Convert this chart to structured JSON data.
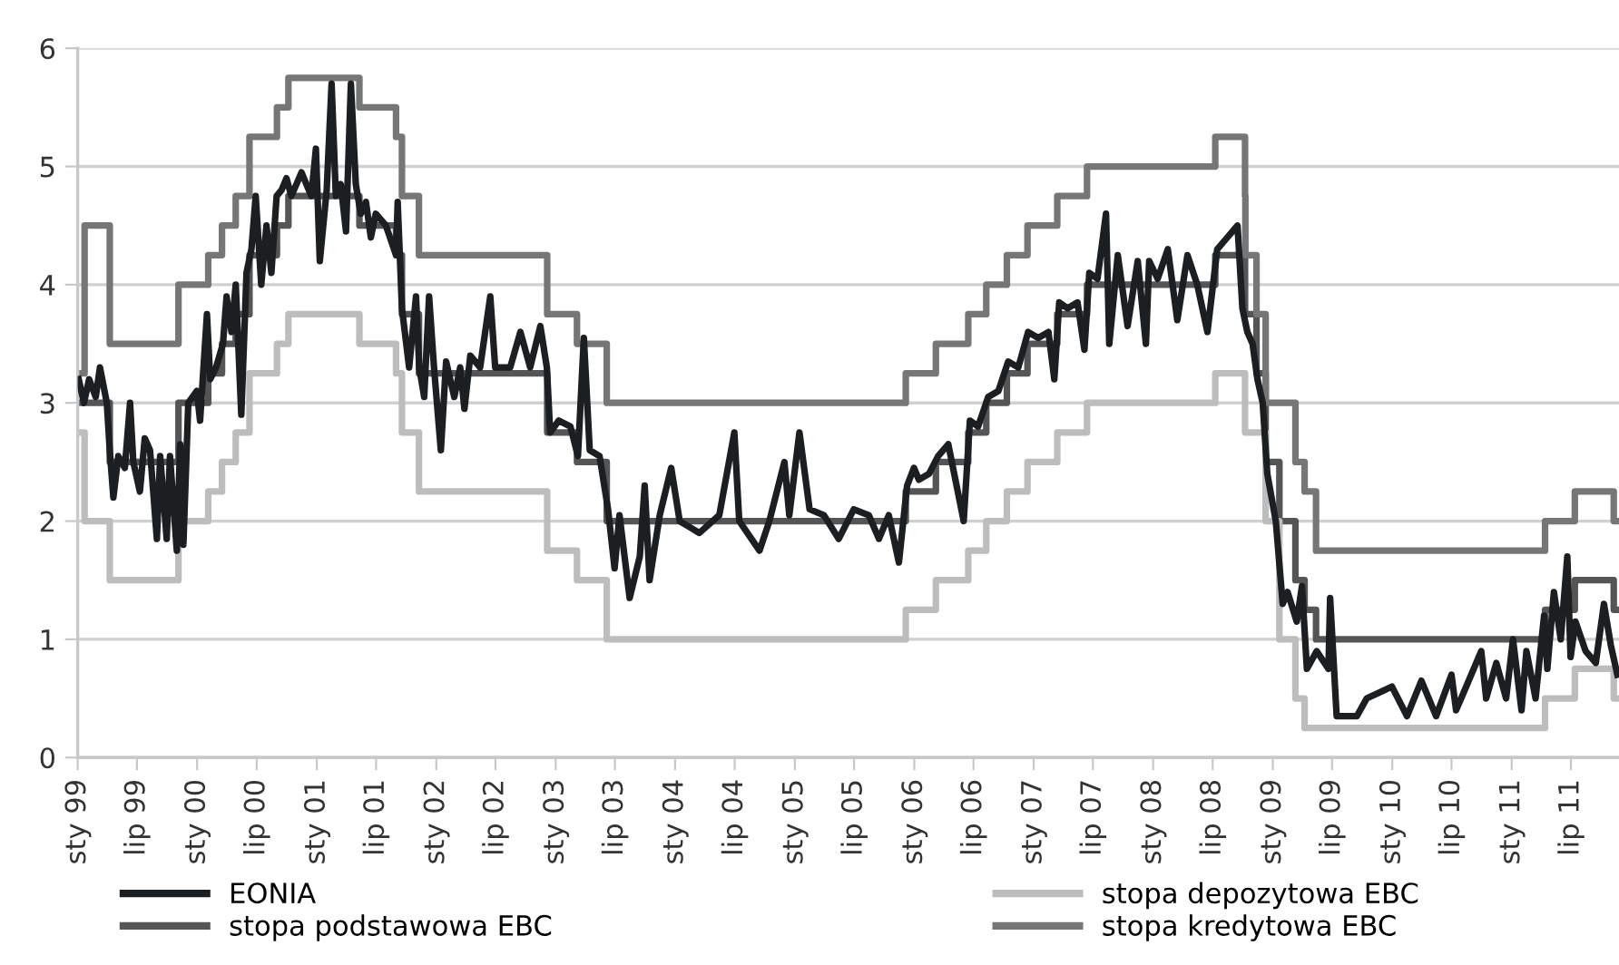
{
  "chart_data": {
    "type": "line",
    "ylim": [
      0,
      6
    ],
    "yticks": [
      0,
      1,
      2,
      3,
      4,
      5,
      6
    ],
    "grid": "y",
    "legend": "bottom",
    "marker": "none",
    "line_style": "solid",
    "xlim": [
      "1999-01-01",
      "2011-11-25"
    ],
    "xticks": [
      {
        "value": "1999-01-01",
        "label": "sty 99"
      },
      {
        "value": "1999-07-01",
        "label": "lip 99"
      },
      {
        "value": "2000-01-01",
        "label": "sty 00"
      },
      {
        "value": "2000-07-01",
        "label": "lip 00"
      },
      {
        "value": "2001-01-01",
        "label": "sty 01"
      },
      {
        "value": "2001-07-01",
        "label": "lip 01"
      },
      {
        "value": "2002-01-01",
        "label": "sty 02"
      },
      {
        "value": "2002-07-01",
        "label": "lip 02"
      },
      {
        "value": "2003-01-01",
        "label": "sty 03"
      },
      {
        "value": "2003-07-01",
        "label": "lip 03"
      },
      {
        "value": "2004-01-01",
        "label": "sty 04"
      },
      {
        "value": "2004-07-01",
        "label": "lip 04"
      },
      {
        "value": "2005-01-01",
        "label": "sty 05"
      },
      {
        "value": "2005-07-01",
        "label": "lip 05"
      },
      {
        "value": "2006-01-01",
        "label": "sty 06"
      },
      {
        "value": "2006-07-01",
        "label": "lip 06"
      },
      {
        "value": "2007-01-01",
        "label": "sty 07"
      },
      {
        "value": "2007-07-01",
        "label": "lip 07"
      },
      {
        "value": "2008-01-01",
        "label": "sty 08"
      },
      {
        "value": "2008-07-01",
        "label": "lip 08"
      },
      {
        "value": "2009-01-01",
        "label": "sty 09"
      },
      {
        "value": "2009-07-01",
        "label": "lip 09"
      },
      {
        "value": "2010-01-01",
        "label": "sty 10"
      },
      {
        "value": "2010-07-01",
        "label": "lip 10"
      },
      {
        "value": "2011-01-01",
        "label": "sty 11"
      },
      {
        "value": "2011-07-01",
        "label": "lip 11"
      }
    ],
    "series": [
      {
        "name": "EONIA",
        "color": "#1c1f21",
        "x": [
          "1999-01-04",
          "1999-01-20",
          "1999-02-05",
          "1999-02-25",
          "1999-03-10",
          "1999-03-31",
          "1999-04-09",
          "1999-04-20",
          "1999-05-05",
          "1999-05-25",
          "1999-06-10",
          "1999-06-20",
          "1999-07-10",
          "1999-07-25",
          "1999-08-10",
          "1999-08-31",
          "1999-09-10",
          "1999-09-30",
          "1999-10-10",
          "1999-10-31",
          "1999-11-10",
          "1999-11-20",
          "1999-12-05",
          "1999-12-31",
          "2000-01-10",
          "2000-01-31",
          "2000-02-10",
          "2000-02-28",
          "2000-03-20",
          "2000-03-31",
          "2000-04-15",
          "2000-04-28",
          "2000-05-15",
          "2000-05-31",
          "2000-06-15",
          "2000-06-28",
          "2000-07-15",
          "2000-07-31",
          "2000-08-15",
          "2000-08-31",
          "2000-09-15",
          "2000-09-30",
          "2000-10-15",
          "2000-11-15",
          "2000-12-15",
          "2000-12-29",
          "2001-01-10",
          "2001-01-31",
          "2001-02-15",
          "2001-02-28",
          "2001-03-15",
          "2001-03-31",
          "2001-04-15",
          "2001-04-30",
          "2001-05-15",
          "2001-05-31",
          "2001-06-15",
          "2001-06-30",
          "2001-07-31",
          "2001-08-31",
          "2001-09-05",
          "2001-09-18",
          "2001-10-10",
          "2001-10-31",
          "2001-11-10",
          "2001-11-25",
          "2001-12-10",
          "2001-12-25",
          "2002-01-15",
          "2002-01-31",
          "2002-02-25",
          "2002-03-15",
          "2002-03-28",
          "2002-04-15",
          "2002-05-15",
          "2002-06-15",
          "2002-06-30",
          "2002-08-15",
          "2002-09-15",
          "2002-10-15",
          "2002-11-15",
          "2002-12-05",
          "2002-12-15",
          "2003-01-10",
          "2003-02-15",
          "2003-03-10",
          "2003-03-28",
          "2003-04-15",
          "2003-05-15",
          "2003-06-10",
          "2003-06-30",
          "2003-07-15",
          "2003-08-15",
          "2003-09-15",
          "2003-09-30",
          "2003-10-15",
          "2003-11-15",
          "2003-12-20",
          "2004-01-15",
          "2004-03-15",
          "2004-05-15",
          "2004-06-30",
          "2004-07-15",
          "2004-09-15",
          "2004-10-15",
          "2004-11-30",
          "2004-12-15",
          "2005-01-15",
          "2005-02-15",
          "2005-03-31",
          "2005-05-15",
          "2005-06-30",
          "2005-08-15",
          "2005-09-15",
          "2005-10-15",
          "2005-11-15",
          "2005-12-10",
          "2005-12-31",
          "2006-01-15",
          "2006-02-15",
          "2006-03-15",
          "2006-04-15",
          "2006-06-01",
          "2006-06-20",
          "2006-07-15",
          "2006-08-15",
          "2006-09-15",
          "2006-10-15",
          "2006-11-15",
          "2006-12-15",
          "2007-01-15",
          "2007-02-15",
          "2007-03-05",
          "2007-03-20",
          "2007-04-15",
          "2007-05-15",
          "2007-06-05",
          "2007-06-20",
          "2007-07-15",
          "2007-08-10",
          "2007-08-20",
          "2007-09-15",
          "2007-10-15",
          "2007-11-15",
          "2007-12-10",
          "2007-12-20",
          "2008-01-15",
          "2008-02-15",
          "2008-03-15",
          "2008-04-15",
          "2008-05-15",
          "2008-06-15",
          "2008-07-15",
          "2008-08-15",
          "2008-09-15",
          "2008-09-30",
          "2008-10-15",
          "2008-10-31",
          "2008-11-15",
          "2008-12-01",
          "2008-12-15",
          "2009-01-10",
          "2009-01-31",
          "2009-02-15",
          "2009-03-15",
          "2009-03-31",
          "2009-04-15",
          "2009-05-15",
          "2009-06-20",
          "2009-06-25",
          "2009-07-15",
          "2009-09-15",
          "2009-10-15",
          "2009-12-31",
          "2010-02-15",
          "2010-03-31",
          "2010-05-15",
          "2010-07-01",
          "2010-07-15",
          "2010-08-15",
          "2010-09-30",
          "2010-10-15",
          "2010-11-15",
          "2010-12-15",
          "2011-01-05",
          "2011-01-31",
          "2011-02-15",
          "2011-03-15",
          "2011-04-10",
          "2011-04-20",
          "2011-05-10",
          "2011-05-31",
          "2011-06-20",
          "2011-06-30",
          "2011-07-15",
          "2011-08-15",
          "2011-09-15",
          "2011-10-10",
          "2011-10-31",
          "2011-11-20"
        ],
        "values": [
          3.2,
          3.0,
          3.2,
          3.05,
          3.3,
          3.0,
          2.6,
          2.2,
          2.55,
          2.45,
          3.0,
          2.5,
          2.25,
          2.7,
          2.6,
          1.85,
          2.55,
          1.85,
          2.55,
          1.75,
          2.65,
          1.8,
          3.0,
          3.1,
          2.85,
          3.75,
          3.2,
          3.3,
          3.5,
          3.9,
          3.6,
          4.0,
          2.9,
          4.1,
          4.3,
          4.75,
          4.0,
          4.5,
          4.1,
          4.75,
          4.8,
          4.9,
          4.75,
          4.95,
          4.75,
          5.15,
          4.2,
          4.8,
          5.7,
          4.75,
          4.85,
          4.45,
          5.7,
          4.85,
          4.6,
          4.7,
          4.4,
          4.6,
          4.5,
          4.25,
          4.7,
          3.8,
          3.3,
          3.9,
          3.3,
          3.05,
          3.9,
          3.3,
          2.6,
          3.35,
          3.05,
          3.3,
          2.95,
          3.4,
          3.3,
          3.9,
          3.3,
          3.3,
          3.6,
          3.3,
          3.65,
          3.3,
          2.75,
          2.85,
          2.8,
          2.55,
          3.55,
          2.6,
          2.55,
          2.1,
          1.6,
          2.05,
          1.35,
          1.7,
          2.3,
          1.5,
          2.05,
          2.45,
          2.0,
          1.9,
          2.05,
          2.75,
          2.0,
          1.75,
          2.0,
          2.5,
          2.05,
          2.75,
          2.1,
          2.05,
          1.85,
          2.1,
          2.05,
          1.85,
          2.05,
          1.65,
          2.3,
          2.45,
          2.35,
          2.4,
          2.55,
          2.65,
          2.0,
          2.85,
          2.8,
          3.05,
          3.1,
          3.35,
          3.3,
          3.6,
          3.55,
          3.6,
          3.2,
          3.85,
          3.8,
          3.85,
          3.45,
          4.1,
          4.05,
          4.6,
          3.5,
          4.25,
          3.65,
          4.2,
          3.5,
          4.2,
          4.05,
          4.3,
          3.7,
          4.25,
          4.0,
          3.6,
          4.3,
          4.4,
          4.5,
          3.8,
          3.6,
          3.5,
          3.2,
          3.0,
          2.4,
          2.0,
          1.3,
          1.4,
          1.15,
          1.45,
          0.75,
          0.9,
          0.75,
          1.35,
          0.35,
          0.35,
          0.5,
          0.6,
          0.35,
          0.65,
          0.35,
          0.7,
          0.4,
          0.6,
          0.9,
          0.5,
          0.8,
          0.5,
          1.0,
          0.4,
          0.9,
          0.5,
          1.2,
          0.75,
          1.4,
          1.0,
          1.7,
          0.85,
          1.15,
          0.9,
          0.8,
          1.3,
          0.95,
          0.7
        ]
      },
      {
        "name": "stopa podstawowa EBC",
        "type": "step",
        "color": "#555555",
        "x": [
          "1999-01-01",
          "1999-04-09",
          "1999-11-05",
          "2000-02-04",
          "2000-03-17",
          "2000-04-28",
          "2000-06-09",
          "2000-09-01",
          "2000-10-06",
          "2001-05-11",
          "2001-08-31",
          "2001-09-18",
          "2001-11-09",
          "2002-12-06",
          "2003-03-07",
          "2003-06-06",
          "2005-12-06",
          "2006-03-08",
          "2006-06-15",
          "2006-08-09",
          "2006-10-11",
          "2006-12-13",
          "2007-03-14",
          "2007-06-13",
          "2008-07-09",
          "2008-10-08",
          "2008-11-12",
          "2008-12-10",
          "2009-01-21",
          "2009-03-11",
          "2009-04-08",
          "2009-05-13",
          "2011-04-13",
          "2011-07-13",
          "2011-11-09",
          "2011-11-25"
        ],
        "values": [
          3.0,
          2.5,
          3.0,
          3.25,
          3.5,
          3.75,
          4.25,
          4.5,
          4.75,
          4.5,
          4.25,
          3.75,
          3.25,
          2.75,
          2.5,
          2.0,
          2.25,
          2.5,
          2.75,
          3.0,
          3.25,
          3.5,
          3.75,
          4.0,
          4.25,
          3.75,
          3.25,
          2.5,
          2.0,
          1.5,
          1.25,
          1.0,
          1.25,
          1.5,
          1.25,
          1.25
        ]
      },
      {
        "name": "stopa depozytowa EBC",
        "type": "step",
        "color": "#bdbdbd",
        "x": [
          "1999-01-01",
          "1999-01-22",
          "1999-04-09",
          "1999-11-05",
          "2000-02-04",
          "2000-03-17",
          "2000-04-28",
          "2000-06-09",
          "2000-09-01",
          "2000-10-06",
          "2001-05-11",
          "2001-08-31",
          "2001-09-18",
          "2001-11-09",
          "2002-12-06",
          "2003-03-07",
          "2003-06-06",
          "2005-12-06",
          "2006-03-08",
          "2006-06-15",
          "2006-08-09",
          "2006-10-11",
          "2006-12-13",
          "2007-03-14",
          "2007-06-13",
          "2008-07-09",
          "2008-10-08",
          "2008-11-12",
          "2008-12-10",
          "2009-01-21",
          "2009-03-11",
          "2009-04-08",
          "2011-04-13",
          "2011-07-13",
          "2011-11-09",
          "2011-11-25"
        ],
        "values": [
          2.75,
          2.0,
          1.5,
          2.0,
          2.25,
          2.5,
          2.75,
          3.25,
          3.5,
          3.75,
          3.5,
          3.25,
          2.75,
          2.25,
          1.75,
          1.5,
          1.0,
          1.25,
          1.5,
          1.75,
          2.0,
          2.25,
          2.5,
          2.75,
          3.0,
          3.25,
          2.75,
          2.75,
          2.0,
          1.0,
          0.5,
          0.25,
          0.5,
          0.75,
          0.5,
          0.5
        ]
      },
      {
        "name": "stopa kredytowa EBC",
        "type": "step",
        "color": "#767676",
        "x": [
          "1999-01-01",
          "1999-01-04",
          "1999-01-22",
          "1999-04-09",
          "1999-11-05",
          "2000-02-04",
          "2000-03-17",
          "2000-04-28",
          "2000-06-09",
          "2000-09-01",
          "2000-10-06",
          "2001-05-11",
          "2001-08-31",
          "2001-09-18",
          "2001-11-09",
          "2002-12-06",
          "2003-03-07",
          "2003-06-06",
          "2005-12-06",
          "2006-03-08",
          "2006-06-15",
          "2006-08-09",
          "2006-10-11",
          "2006-12-13",
          "2007-03-14",
          "2007-06-13",
          "2008-07-09",
          "2008-10-08",
          "2008-10-09",
          "2008-11-12",
          "2008-12-10",
          "2009-03-11",
          "2009-04-08",
          "2009-05-13",
          "2011-04-13",
          "2011-07-13",
          "2011-11-09",
          "2011-11-25"
        ],
        "values": [
          3.25,
          3.25,
          4.5,
          3.5,
          4.0,
          4.25,
          4.5,
          4.75,
          5.25,
          5.5,
          5.75,
          5.5,
          5.25,
          4.75,
          4.25,
          3.75,
          3.5,
          3.0,
          3.25,
          3.5,
          3.75,
          4.0,
          4.25,
          4.5,
          4.75,
          5.0,
          5.25,
          4.75,
          4.25,
          3.75,
          3.0,
          2.5,
          2.25,
          1.75,
          2.0,
          2.25,
          2.0,
          2.0
        ]
      }
    ]
  }
}
